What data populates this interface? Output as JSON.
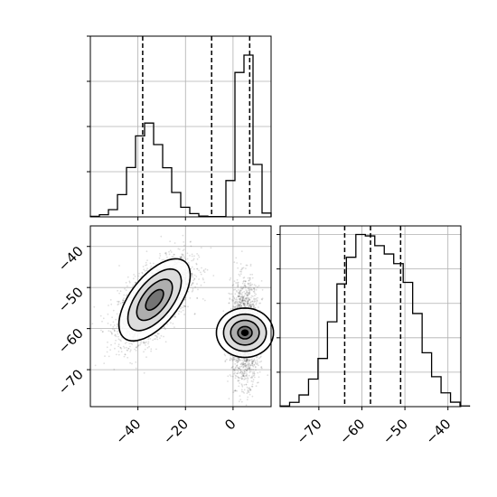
{
  "chart_data": [
    {
      "type": "histogram",
      "panel": "marginal-x",
      "xlim": [
        -60,
        16
      ],
      "ylim": [
        0,
        1.0
      ],
      "grid": true,
      "bin_width": 3.8,
      "bin_start": -60,
      "counts": [
        0.003,
        0.012,
        0.04,
        0.123,
        0.273,
        0.448,
        0.519,
        0.4,
        0.272,
        0.135,
        0.053,
        0.018,
        0.004,
        0.002,
        0.002,
        0.201,
        0.799,
        0.895,
        0.29,
        0.021
      ],
      "quantile_lines": [
        -38,
        -9,
        7
      ],
      "ytick_values": [
        0.25,
        0.5,
        0.75,
        1.0
      ]
    },
    {
      "type": "scatter-contour",
      "panel": "joint",
      "xlim": [
        -60,
        16
      ],
      "ylim": [
        -79,
        -35
      ],
      "clusters": [
        {
          "center": [
            -33,
            -53
          ],
          "sd": [
            7.5,
            5.0
          ],
          "corr": 0.6,
          "points": 2600
        },
        {
          "center": [
            5,
            -61
          ],
          "sd": [
            3.0,
            6.0
          ],
          "corr": 0.0,
          "points": 2000
        }
      ],
      "xticks": [
        -40,
        -20,
        0
      ],
      "yticks": [
        -70,
        -60,
        -50,
        -40
      ],
      "xtick_labels": [
        "−40",
        "−20",
        "0"
      ],
      "ytick_labels": [
        "−70",
        "−60",
        "−50",
        "−40"
      ]
    },
    {
      "type": "histogram",
      "panel": "marginal-y",
      "xlim": [
        -79,
        -37
      ],
      "ylim": [
        0,
        1.05
      ],
      "grid": true,
      "bin_width": 2.2,
      "bin_start": -79,
      "counts": [
        0.004,
        0.025,
        0.068,
        0.16,
        0.28,
        0.493,
        0.713,
        0.868,
        1.0,
        0.992,
        0.935,
        0.887,
        0.831,
        0.722,
        0.541,
        0.313,
        0.174,
        0.08,
        0.026,
        0.004
      ],
      "quantile_lines": [
        -64,
        -58,
        -51
      ],
      "xticks": [
        -70,
        -60,
        -50,
        -40
      ],
      "xtick_labels": [
        "−70",
        "−60",
        "−50",
        "−40"
      ],
      "ytick_values": [
        0.2,
        0.4,
        0.6,
        0.8,
        1.0
      ]
    }
  ]
}
